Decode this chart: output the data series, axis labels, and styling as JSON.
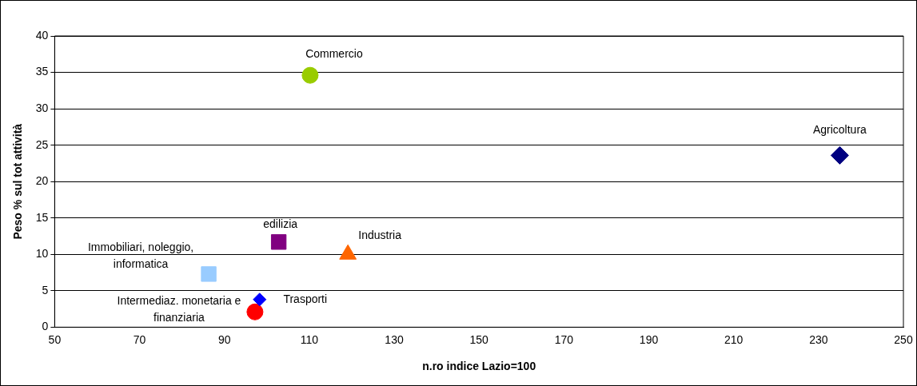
{
  "chart_data": {
    "type": "scatter",
    "xlabel": "n.ro indice Lazio=100",
    "ylabel": "Peso % sul tot attività",
    "xlim": [
      50,
      250
    ],
    "xticks": [
      50,
      70,
      90,
      110,
      130,
      150,
      170,
      190,
      210,
      230,
      250
    ],
    "ylim": [
      0,
      40
    ],
    "yticks": [
      0,
      5,
      10,
      15,
      20,
      25,
      30,
      35,
      40
    ],
    "grid": "y",
    "legend": false,
    "series": [
      {
        "name": "Commercio",
        "color": "#99cc00",
        "marker": "circle",
        "x": [
          110.2
        ],
        "values": [
          34.6
        ]
      },
      {
        "name": "Agricoltura",
        "color": "#000080",
        "marker": "diamond",
        "x": [
          235
        ],
        "values": [
          23.6
        ]
      },
      {
        "name": "edilizia",
        "color": "#800080",
        "marker": "square",
        "x": [
          102.8
        ],
        "values": [
          11.7
        ]
      },
      {
        "name": "Industria",
        "color": "#ff6600",
        "marker": "triangle",
        "x": [
          119.1
        ],
        "values": [
          10.0
        ]
      },
      {
        "name": "Immobiliari, noleggio, informatica",
        "color": "#99ccff",
        "marker": "square",
        "x": [
          86.3
        ],
        "values": [
          7.3
        ]
      },
      {
        "name": "Trasporti",
        "color": "#0000ff",
        "marker": "diamond",
        "x": [
          98.3
        ],
        "values": [
          3.8
        ]
      },
      {
        "name": "Intermediaz. monetaria e finanziaria",
        "color": "#ff0000",
        "marker": "circle",
        "x": [
          97.2
        ],
        "values": [
          2.1
        ]
      }
    ]
  }
}
